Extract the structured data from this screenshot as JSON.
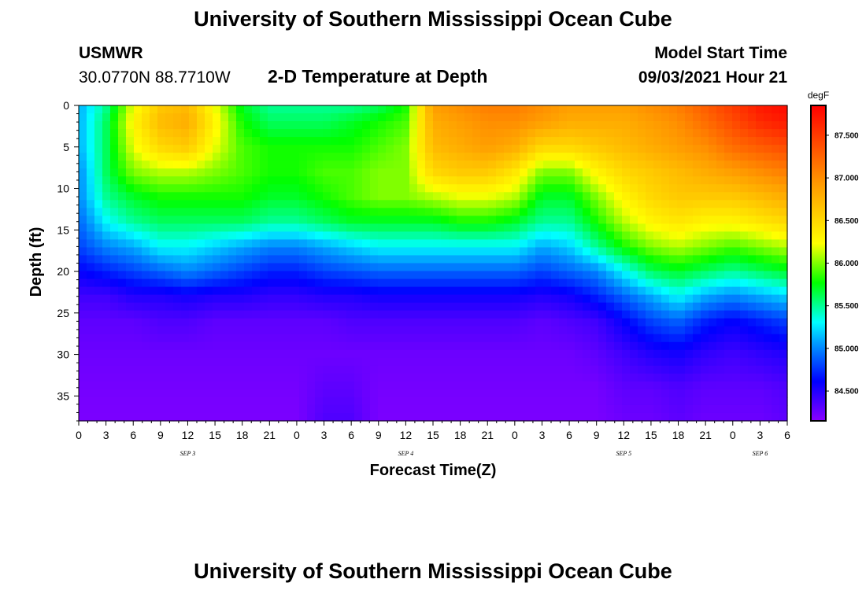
{
  "header": {
    "title": "University of Southern Mississippi Ocean Cube",
    "station": "USMWR",
    "coords": "30.0770N  88.7710W",
    "model_start_label": "Model Start Time",
    "model_start_value": "09/03/2021 Hour 21",
    "footer_title": "University of Southern Mississippi Ocean Cube"
  },
  "chart_data": {
    "type": "heatmap",
    "title": "2-D Temperature at Depth",
    "xlabel": "Forecast Time(Z)",
    "ylabel": "Depth (ft)",
    "xlim": [
      0,
      78
    ],
    "ylim": [
      38,
      0
    ],
    "x_tick_labels": [
      "0",
      "3",
      "6",
      "9",
      "12",
      "15",
      "18",
      "21",
      "0",
      "3",
      "6",
      "9",
      "12",
      "15",
      "18",
      "21",
      "0",
      "3",
      "6",
      "9",
      "12",
      "15",
      "18",
      "21",
      "0",
      "3",
      "6"
    ],
    "y_ticks": [
      0,
      5,
      10,
      15,
      20,
      25,
      30,
      35
    ],
    "date_labels": [
      {
        "text": "SEP 3",
        "hour": 12
      },
      {
        "text": "SEP 4",
        "hour": 36
      },
      {
        "text": "SEP 5",
        "hour": 60
      },
      {
        "text": "SEP 6",
        "hour": 75
      }
    ],
    "colorbar": {
      "unit": "degF",
      "range": [
        84.15,
        87.85
      ],
      "ticks": [
        "84.500",
        "85.000",
        "85.500",
        "86.000",
        "86.500",
        "87.000",
        "87.500"
      ]
    },
    "depth_profile_depths_ft": [
      0,
      2,
      5,
      8,
      11,
      14,
      17,
      20,
      23,
      26,
      30,
      34,
      38
    ],
    "profile_times_hr": [
      0,
      3,
      6,
      9,
      12,
      15,
      18,
      21,
      24,
      27,
      30,
      33,
      36,
      39,
      42,
      45,
      48,
      51,
      54,
      57,
      60,
      63,
      66,
      69,
      72,
      75,
      78
    ],
    "temperature_profiles_degF": [
      [
        85.1,
        85.1,
        85.1,
        85.0,
        85.0,
        84.9,
        84.8,
        84.6,
        84.4,
        84.3,
        84.25,
        84.22,
        84.2
      ],
      [
        85.5,
        85.6,
        85.6,
        85.6,
        85.5,
        85.3,
        85.0,
        84.7,
        84.4,
        84.3,
        84.25,
        84.22,
        84.2
      ],
      [
        86.2,
        86.3,
        86.2,
        86.0,
        85.7,
        85.5,
        85.1,
        84.8,
        84.5,
        84.3,
        84.25,
        84.22,
        84.2
      ],
      [
        86.6,
        86.7,
        86.5,
        86.1,
        85.8,
        85.6,
        85.3,
        84.9,
        84.5,
        84.35,
        84.25,
        84.22,
        84.2
      ],
      [
        86.7,
        86.8,
        86.6,
        86.1,
        85.8,
        85.6,
        85.3,
        85.0,
        84.55,
        84.35,
        84.25,
        84.22,
        84.2
      ],
      [
        86.2,
        86.3,
        86.2,
        86.0,
        85.8,
        85.6,
        85.2,
        84.9,
        84.5,
        84.3,
        84.25,
        84.22,
        84.2
      ],
      [
        85.7,
        85.8,
        85.9,
        85.9,
        85.8,
        85.6,
        85.1,
        84.8,
        84.5,
        84.3,
        84.25,
        84.22,
        84.2
      ],
      [
        85.5,
        85.6,
        85.8,
        85.8,
        85.7,
        85.5,
        85.0,
        84.7,
        84.45,
        84.3,
        84.25,
        84.22,
        84.2
      ],
      [
        85.5,
        85.6,
        85.8,
        85.8,
        85.7,
        85.5,
        85.0,
        84.7,
        84.45,
        84.3,
        84.25,
        84.22,
        84.2
      ],
      [
        85.5,
        85.6,
        85.8,
        85.9,
        85.8,
        85.6,
        85.1,
        84.8,
        84.5,
        84.3,
        84.25,
        84.3,
        84.35
      ],
      [
        85.5,
        85.7,
        85.8,
        85.9,
        85.9,
        85.7,
        85.2,
        84.85,
        84.5,
        84.35,
        84.25,
        84.3,
        84.35
      ],
      [
        85.6,
        85.8,
        85.9,
        86.0,
        86.0,
        85.7,
        85.3,
        84.9,
        84.55,
        84.35,
        84.25,
        84.22,
        84.2
      ],
      [
        85.8,
        85.9,
        86.0,
        86.0,
        86.0,
        85.7,
        85.3,
        84.9,
        84.55,
        84.35,
        84.25,
        84.22,
        84.2
      ],
      [
        86.9,
        86.8,
        86.7,
        86.5,
        86.1,
        85.7,
        85.3,
        84.9,
        84.55,
        84.35,
        84.25,
        84.22,
        84.2
      ],
      [
        87.0,
        86.9,
        86.8,
        86.6,
        86.2,
        85.8,
        85.3,
        84.9,
        84.55,
        84.35,
        84.25,
        84.22,
        84.2
      ],
      [
        87.1,
        87.0,
        86.9,
        86.6,
        86.2,
        85.8,
        85.3,
        84.9,
        84.55,
        84.35,
        84.25,
        84.22,
        84.2
      ],
      [
        87.1,
        87.0,
        86.8,
        86.4,
        86.1,
        85.7,
        85.3,
        84.9,
        84.55,
        84.35,
        84.25,
        84.22,
        84.2
      ],
      [
        87.0,
        86.9,
        86.5,
        86.0,
        85.7,
        85.5,
        85.1,
        84.8,
        84.5,
        84.3,
        84.25,
        84.22,
        84.2
      ],
      [
        86.9,
        86.8,
        86.5,
        86.0,
        85.7,
        85.5,
        85.2,
        84.9,
        84.55,
        84.35,
        84.25,
        84.22,
        84.2
      ],
      [
        86.9,
        86.8,
        86.6,
        86.3,
        86.0,
        85.8,
        85.5,
        85.0,
        84.7,
        84.4,
        84.3,
        84.22,
        84.2
      ],
      [
        86.9,
        86.8,
        86.7,
        86.5,
        86.3,
        86.1,
        85.8,
        85.3,
        84.9,
        84.6,
        84.4,
        84.3,
        84.25
      ],
      [
        87.0,
        86.9,
        86.8,
        86.6,
        86.5,
        86.3,
        86.0,
        85.6,
        85.1,
        84.8,
        84.5,
        84.3,
        84.25
      ],
      [
        87.1,
        87.0,
        86.9,
        86.7,
        86.6,
        86.4,
        86.1,
        85.7,
        85.3,
        84.9,
        84.55,
        84.35,
        84.3
      ],
      [
        87.3,
        87.2,
        87.0,
        86.8,
        86.6,
        86.3,
        86.0,
        85.6,
        85.1,
        84.7,
        84.45,
        84.3,
        84.25
      ],
      [
        87.5,
        87.4,
        87.2,
        86.9,
        86.6,
        86.3,
        85.9,
        85.5,
        85.0,
        84.6,
        84.4,
        84.3,
        84.25
      ],
      [
        87.7,
        87.6,
        87.3,
        87.0,
        86.7,
        86.4,
        86.0,
        85.6,
        85.1,
        84.7,
        84.45,
        84.3,
        84.25
      ],
      [
        87.8,
        87.7,
        87.4,
        87.1,
        86.8,
        86.5,
        86.1,
        85.7,
        85.2,
        84.8,
        84.5,
        84.35,
        84.3
      ]
    ]
  }
}
